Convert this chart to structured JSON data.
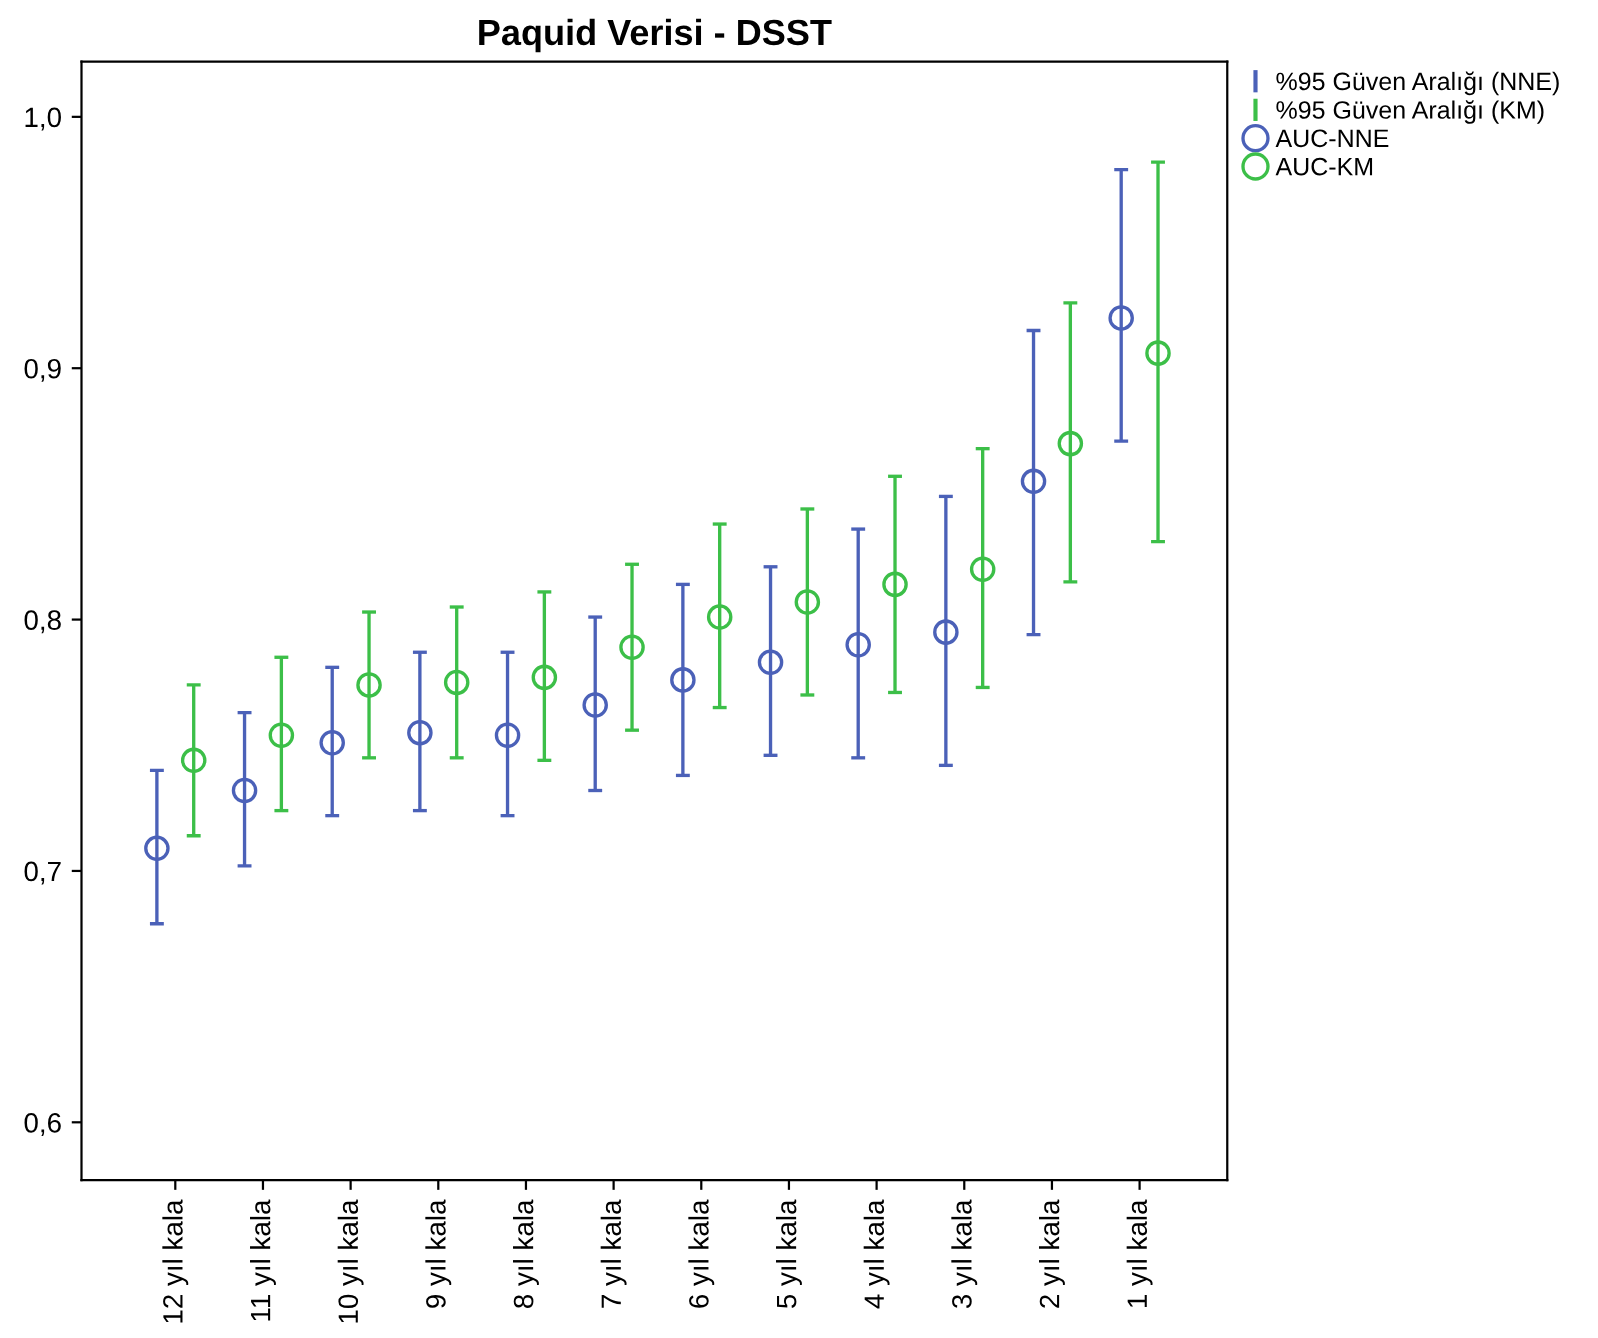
{
  "chart_data": {
    "type": "scatter",
    "title": "Paquid Verisi - DSST",
    "annotations": [
      "%95 Güven Aralığı (NNE)",
      "%95 Güven Aralığı (KM)"
    ],
    "categories": [
      "12 yıl kala",
      "11 yıl kala",
      "10 yıl kala",
      "9 yıl kala",
      "8 yıl kala",
      "7 yıl kala",
      "6 yıl kala",
      "5 yıl kala",
      "4 yıl kala",
      "3 yıl kala",
      "2 yıl kala",
      "1 yıl kala"
    ],
    "series": [
      {
        "name": "AUC-NNE",
        "color": "#4b61b8",
        "values": [
          0.709,
          0.732,
          0.751,
          0.755,
          0.754,
          0.766,
          0.776,
          0.783,
          0.79,
          0.795,
          0.855,
          0.92
        ],
        "errors": [
          [
            0.679,
            0.74
          ],
          [
            0.702,
            0.763
          ],
          [
            0.722,
            0.781
          ],
          [
            0.724,
            0.787
          ],
          [
            0.722,
            0.787
          ],
          [
            0.732,
            0.801
          ],
          [
            0.738,
            0.814
          ],
          [
            0.746,
            0.821
          ],
          [
            0.745,
            0.836
          ],
          [
            0.742,
            0.849
          ],
          [
            0.794,
            0.915
          ],
          [
            0.871,
            0.979
          ]
        ]
      },
      {
        "name": "AUC-KM",
        "color": "#3cbf48",
        "values": [
          0.744,
          0.754,
          0.774,
          0.775,
          0.777,
          0.789,
          0.801,
          0.807,
          0.814,
          0.82,
          0.87,
          0.906
        ],
        "errors": [
          [
            0.714,
            0.774
          ],
          [
            0.724,
            0.785
          ],
          [
            0.745,
            0.803
          ],
          [
            0.745,
            0.805
          ],
          [
            0.744,
            0.811
          ],
          [
            0.756,
            0.822
          ],
          [
            0.765,
            0.838
          ],
          [
            0.77,
            0.844
          ],
          [
            0.771,
            0.857
          ],
          [
            0.773,
            0.868
          ],
          [
            0.815,
            0.926
          ],
          [
            0.831,
            0.982
          ]
        ]
      }
    ],
    "ylim": [
      0.577,
      1.022
    ],
    "yticks": [
      {
        "value": 0.6,
        "label": "0,6"
      },
      {
        "value": 0.7,
        "label": "0,7"
      },
      {
        "value": 0.8,
        "label": "0,8"
      },
      {
        "value": 0.9,
        "label": "0,9"
      },
      {
        "value": 1.0,
        "label": "1,0"
      }
    ],
    "marker": "circle",
    "grid": false,
    "legend": "top right"
  }
}
